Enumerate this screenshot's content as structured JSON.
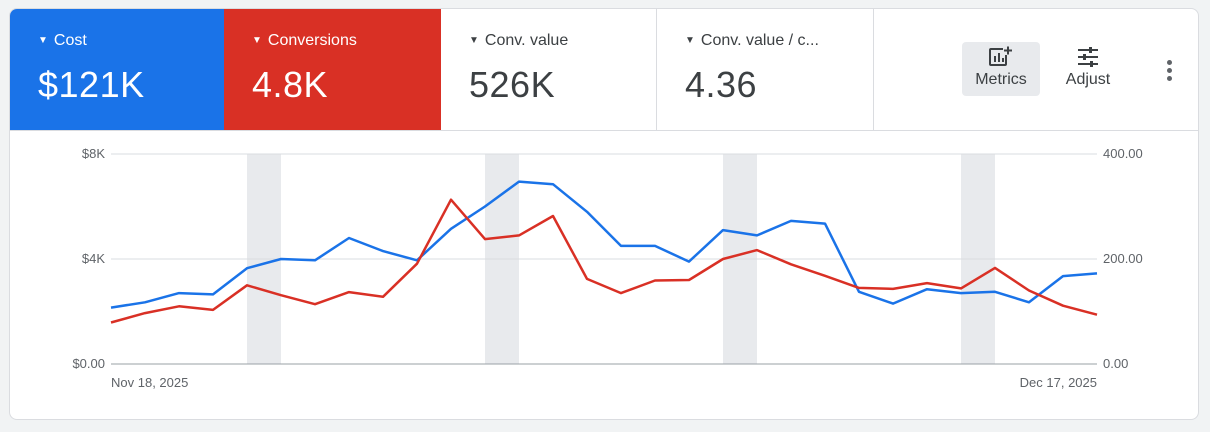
{
  "scorecards": [
    {
      "label": "Cost",
      "value": "$121K",
      "bg": "#1a73e8"
    },
    {
      "label": "Conversions",
      "value": "4.8K",
      "bg": "#d93025"
    },
    {
      "label": "Conv. value",
      "value": "526K"
    },
    {
      "label": "Conv. value / c...",
      "value": "4.36"
    }
  ],
  "tools": {
    "metrics_label": "Metrics",
    "adjust_label": "Adjust"
  },
  "colors": {
    "cost": "#1a73e8",
    "conversions": "#d93025",
    "weekend_band": "#e8eaed",
    "grid": "#dadce0"
  },
  "chart_data": {
    "type": "line",
    "x_start_label": "Nov 18, 2025",
    "x_end_label": "Dec 17, 2025",
    "x": [
      "2025-11-18",
      "2025-11-19",
      "2025-11-20",
      "2025-11-21",
      "2025-11-22",
      "2025-11-23",
      "2025-11-24",
      "2025-11-25",
      "2025-11-26",
      "2025-11-27",
      "2025-11-28",
      "2025-11-29",
      "2025-11-30",
      "2025-12-01",
      "2025-12-02",
      "2025-12-03",
      "2025-12-04",
      "2025-12-05",
      "2025-12-06",
      "2025-12-07",
      "2025-12-08",
      "2025-12-09",
      "2025-12-10",
      "2025-12-11",
      "2025-12-12",
      "2025-12-13",
      "2025-12-14",
      "2025-12-15",
      "2025-12-16",
      "2025-12-17"
    ],
    "y_left": {
      "ticks": [
        "$0.00",
        "$4K",
        "$8K"
      ],
      "range": [
        0,
        8000
      ]
    },
    "y_right": {
      "ticks": [
        "0.00",
        "200.00",
        "400.00"
      ],
      "range": [
        0,
        400
      ]
    },
    "weekend_dates": [
      "2025-11-22",
      "2025-11-29",
      "2025-12-06",
      "2025-12-13"
    ],
    "series": [
      {
        "name": "Cost",
        "axis": "left",
        "values": [
          2150,
          2350,
          2700,
          2650,
          3650,
          4000,
          3950,
          4800,
          4300,
          3950,
          5150,
          6000,
          6950,
          6850,
          5800,
          4500,
          4500,
          3900,
          5100,
          4900,
          5450,
          5350,
          2750,
          2300,
          2850,
          2700,
          2750,
          2350,
          3350,
          3450
        ]
      },
      {
        "name": "Conversions",
        "axis": "right",
        "values": [
          79,
          97,
          110,
          103,
          150,
          131,
          114,
          137,
          128,
          191,
          313,
          238,
          245,
          282,
          162,
          135,
          159,
          160,
          200,
          217,
          190,
          168,
          145,
          143,
          154,
          144,
          183,
          140,
          111,
          94
        ]
      }
    ]
  }
}
